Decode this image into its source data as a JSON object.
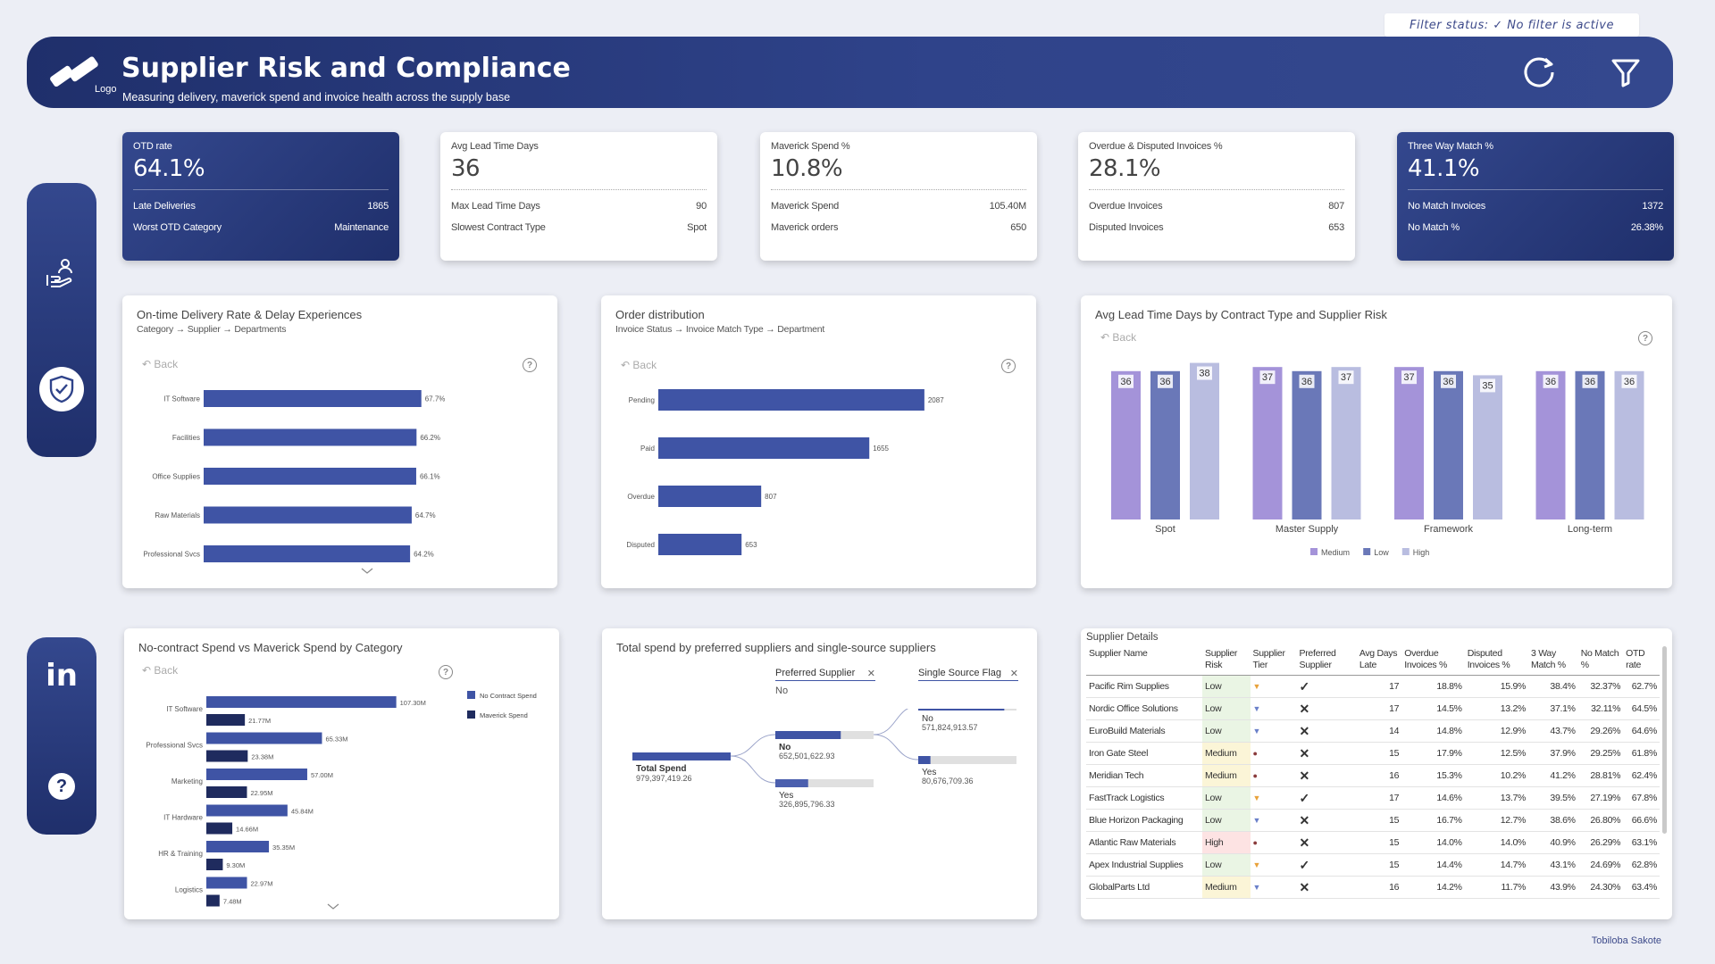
{
  "filter_status": "Filter status: ✓ No filter is active",
  "header": {
    "logo_label": "Logo",
    "title": "Supplier Risk and Compliance",
    "subtitle": "Measuring delivery, maverick spend and invoice health across the supply base",
    "refresh_icon": "refresh-icon",
    "filter_icon": "filter-icon"
  },
  "sidebar_top": {
    "items": [
      {
        "icon": "hand-person-icon"
      },
      {
        "icon": "shield-check-icon"
      }
    ]
  },
  "sidebar_bottom": {
    "items": [
      {
        "icon": "linkedin-icon",
        "label": "in"
      },
      {
        "icon": "help-icon",
        "label": "?"
      }
    ]
  },
  "kpis": [
    {
      "title": "OTD rate",
      "value": "64.1%",
      "rows": [
        {
          "label": "Late Deliveries",
          "value": "1865"
        },
        {
          "label": "Worst OTD Category",
          "value": "Maintenance"
        }
      ]
    },
    {
      "title": "Avg Lead Time Days",
      "value": "36",
      "rows": [
        {
          "label": "Max Lead Time Days",
          "value": "90"
        },
        {
          "label": "Slowest Contract Type",
          "value": "Spot"
        }
      ]
    },
    {
      "title": "Maverick Spend %",
      "value": "10.8%",
      "rows": [
        {
          "label": "Maverick Spend",
          "value": "105.40M"
        },
        {
          "label": "Maverick orders",
          "value": "650"
        }
      ]
    },
    {
      "title": "Overdue & Disputed Invoices %",
      "value": "28.1%",
      "rows": [
        {
          "label": "Overdue Invoices",
          "value": "807"
        },
        {
          "label": "Disputed Invoices",
          "value": "653"
        }
      ]
    },
    {
      "title": "Three Way Match %",
      "value": "41.1%",
      "rows": [
        {
          "label": "No Match Invoices",
          "value": "1372"
        },
        {
          "label": "No Match %",
          "value": "26.38%"
        }
      ]
    }
  ],
  "common": {
    "back": "Back",
    "help": "?"
  },
  "otd_chart": {
    "title": "On-time Delivery Rate & Delay Experiences",
    "subtitle": "Category → Supplier → Departments",
    "chart_data": {
      "type": "bar",
      "orientation": "horizontal",
      "categories": [
        "IT Software",
        "Facilities",
        "Office Supplies",
        "Raw Materials",
        "Professional Svcs"
      ],
      "values": [
        67.7,
        66.2,
        66.1,
        64.7,
        64.2
      ],
      "labels": [
        "67.7%",
        "66.2%",
        "66.1%",
        "64.7%",
        "64.2%"
      ],
      "color": "#3f54a5",
      "xlim": [
        0,
        100
      ]
    }
  },
  "order_chart": {
    "title": "Order distribution",
    "subtitle": "Invoice Status → Invoice Match Type → Department",
    "chart_data": {
      "type": "bar",
      "orientation": "horizontal",
      "categories": [
        "Pending",
        "Paid",
        "Overdue",
        "Disputed"
      ],
      "values": [
        2087,
        1655,
        807,
        653
      ],
      "color": "#3f54a5",
      "xlim": [
        0,
        2200
      ]
    }
  },
  "lead_chart": {
    "title": "Avg Lead Time Days by Contract Type and Supplier Risk",
    "chart_data": {
      "type": "bar",
      "categories": [
        "Spot",
        "Master Supply",
        "Framework",
        "Long-term"
      ],
      "series": [
        {
          "name": "Medium",
          "values": [
            36,
            37,
            37,
            36
          ],
          "color": "#a493d9"
        },
        {
          "name": "Low",
          "values": [
            36,
            36,
            36,
            36
          ],
          "color": "#6a78b8"
        },
        {
          "name": "High",
          "values": [
            38,
            37,
            35,
            36
          ],
          "color": "#b9bde0"
        }
      ],
      "legend": "bottom",
      "ylim": [
        0,
        40
      ]
    }
  },
  "spend_chart": {
    "title": "No-contract Spend vs Maverick Spend by Category",
    "chart_data": {
      "type": "bar",
      "orientation": "horizontal",
      "categories": [
        "IT Software",
        "Professional Svcs",
        "Marketing",
        "IT Hardware",
        "HR & Training",
        "Logistics"
      ],
      "series": [
        {
          "name": "No Contract Spend",
          "values": [
            107.3,
            65.33,
            57.0,
            45.84,
            35.35,
            22.97
          ],
          "labels": [
            "107.30M",
            "65.33M",
            "57.00M",
            "45.84M",
            "35.35M",
            "22.97M"
          ],
          "color": "#3f54a5"
        },
        {
          "name": "Maverick Spend",
          "values": [
            21.77,
            23.38,
            22.95,
            14.66,
            9.3,
            7.48
          ],
          "labels": [
            "21.77M",
            "23.38M",
            "22.95M",
            "14.66M",
            "9.30M",
            "7.48M"
          ],
          "color": "#1f2b5e"
        }
      ],
      "legend": "top-right",
      "xlim": [
        0,
        110
      ]
    }
  },
  "tree_chart": {
    "title": "Total spend by preferred suppliers and single-source suppliers",
    "level1": {
      "label": "Preferred Supplier",
      "selected": "No"
    },
    "level2": {
      "label": "Single Source Flag"
    },
    "root": {
      "label": "Total Spend",
      "value": "979,397,419.26"
    },
    "branches": [
      {
        "label": "No",
        "value": "652,501,622.93",
        "share": 0.666
      },
      {
        "label": "Yes",
        "value": "326,895,796.33",
        "share": 0.334
      }
    ],
    "leaves": [
      {
        "label": "No",
        "value": "571,824,913.57",
        "share": 0.876
      },
      {
        "label": "Yes",
        "value": "80,676,709.36",
        "share": 0.124
      }
    ]
  },
  "supplier_table": {
    "title": "Supplier Details",
    "columns": [
      "Supplier Name",
      "Supplier Risk",
      "Supplier Tier",
      "Preferred Supplier",
      "Avg Days Late",
      "Overdue Invoices %",
      "Disputed Invoices %",
      "3 Way Match %",
      "No Match %",
      "OTD rate"
    ],
    "rows": [
      {
        "name": "Pacific Rim Supplies",
        "risk": "Low",
        "tier": "gold",
        "preferred": true,
        "days": "17",
        "overdue": "18.8%",
        "disputed": "15.9%",
        "match": "38.4%",
        "nomatch": "32.37%",
        "otd": "62.7%"
      },
      {
        "name": "Nordic Office Solutions",
        "risk": "Low",
        "tier": "silver",
        "preferred": false,
        "days": "17",
        "overdue": "14.5%",
        "disputed": "13.2%",
        "match": "37.1%",
        "nomatch": "32.11%",
        "otd": "64.5%"
      },
      {
        "name": "EuroBuild Materials",
        "risk": "Low",
        "tier": "silver",
        "preferred": false,
        "days": "14",
        "overdue": "14.8%",
        "disputed": "12.9%",
        "match": "43.7%",
        "nomatch": "29.26%",
        "otd": "64.6%"
      },
      {
        "name": "Iron Gate Steel",
        "risk": "Medium",
        "tier": "bronze",
        "preferred": false,
        "days": "15",
        "overdue": "17.9%",
        "disputed": "12.5%",
        "match": "37.9%",
        "nomatch": "29.25%",
        "otd": "61.8%"
      },
      {
        "name": "Meridian Tech",
        "risk": "Medium",
        "tier": "bronze",
        "preferred": false,
        "days": "16",
        "overdue": "15.3%",
        "disputed": "10.2%",
        "match": "41.2%",
        "nomatch": "28.81%",
        "otd": "62.4%"
      },
      {
        "name": "FastTrack Logistics",
        "risk": "Low",
        "tier": "gold",
        "preferred": true,
        "days": "17",
        "overdue": "14.6%",
        "disputed": "13.7%",
        "match": "39.5%",
        "nomatch": "27.19%",
        "otd": "67.8%"
      },
      {
        "name": "Blue Horizon Packaging",
        "risk": "Low",
        "tier": "silver",
        "preferred": false,
        "days": "15",
        "overdue": "16.7%",
        "disputed": "12.7%",
        "match": "38.6%",
        "nomatch": "26.80%",
        "otd": "66.6%"
      },
      {
        "name": "Atlantic Raw Materials",
        "risk": "High",
        "tier": "bronze",
        "preferred": false,
        "days": "15",
        "overdue": "14.0%",
        "disputed": "14.0%",
        "match": "40.9%",
        "nomatch": "26.29%",
        "otd": "63.1%"
      },
      {
        "name": "Apex Industrial Supplies",
        "risk": "Low",
        "tier": "gold",
        "preferred": true,
        "days": "15",
        "overdue": "14.4%",
        "disputed": "14.7%",
        "match": "43.1%",
        "nomatch": "24.69%",
        "otd": "62.8%"
      },
      {
        "name": "GlobalParts Ltd",
        "risk": "Medium",
        "tier": "silver",
        "preferred": false,
        "days": "16",
        "overdue": "14.2%",
        "disputed": "11.7%",
        "match": "43.9%",
        "nomatch": "24.30%",
        "otd": "63.4%"
      }
    ]
  },
  "credit": "Tobiloba Sakote",
  "colors": {
    "primary": "#2f438a",
    "dark": "#1f2f6b",
    "bar": "#3f54a5",
    "otd_orange": "#f0a020"
  }
}
